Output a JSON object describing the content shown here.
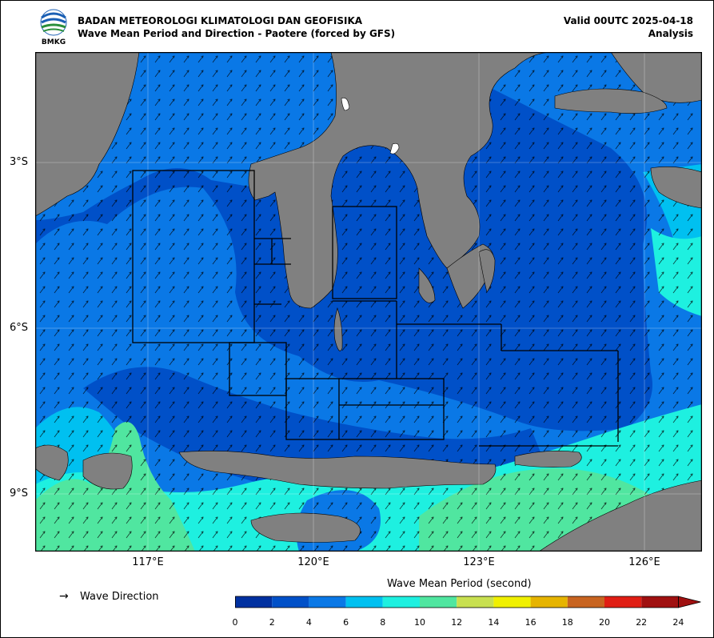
{
  "header": {
    "logo_text": "BMKG",
    "title_line1": "BADAN METEOROLOGI KLIMATOLOGI DAN GEOFISIKA",
    "title_line2": "Wave Mean Period and Direction - Paotere (forced by GFS)",
    "valid": "Valid 00UTC 2025-04-18",
    "analysis": "Analysis"
  },
  "map": {
    "lat_labels": [
      "3°S",
      "6°S",
      "9°S"
    ],
    "lon_labels": [
      "117°E",
      "120°E",
      "123°E",
      "126°E"
    ],
    "colors": {
      "land": "#808080",
      "sea_deep": "#0050c8",
      "sea_mid": "#0a78e6",
      "sea_light": "#00c0f0",
      "sea_cyan": "#1ef0e0",
      "sea_green": "#50e6a0"
    }
  },
  "legend": {
    "arrow_symbol": "→",
    "direction_label": "Wave Direction",
    "colorbar_title": "Wave Mean Period (second)",
    "ticks": [
      "0",
      "2",
      "4",
      "6",
      "8",
      "10",
      "12",
      "14",
      "16",
      "18",
      "20",
      "22",
      "24"
    ],
    "colors": [
      "#0030a0",
      "#0050c8",
      "#0a78e6",
      "#00c0f0",
      "#1ef0e0",
      "#50e6a0",
      "#c8e050",
      "#f0f000",
      "#e6b400",
      "#c86420",
      "#e01e14",
      "#a01010"
    ]
  }
}
